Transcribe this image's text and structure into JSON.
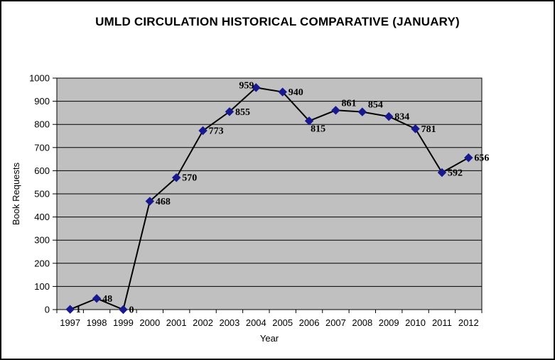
{
  "chart_data": {
    "type": "line",
    "title": "UMLD CIRCULATION HISTORICAL COMPARATIVE (JANUARY)",
    "xlabel": "Year",
    "ylabel": "Book Requests",
    "categories": [
      "1997",
      "1998",
      "1999",
      "2000",
      "2001",
      "2002",
      "2003",
      "2004",
      "2005",
      "2006",
      "2007",
      "2008",
      "2009",
      "2010",
      "2011",
      "2012"
    ],
    "values": [
      1,
      48,
      0,
      468,
      570,
      773,
      855,
      959,
      940,
      815,
      861,
      854,
      834,
      781,
      592,
      656
    ],
    "data_labels": [
      "1",
      "48",
      "0",
      "468",
      "570",
      "773",
      "855",
      "959",
      "940",
      "815",
      "861",
      "854",
      "834",
      "781",
      "592",
      "656"
    ],
    "label_placement": [
      "right",
      "right",
      "right",
      "right",
      "right",
      "right",
      "right",
      "left-above",
      "right",
      "below-right",
      "above-right",
      "above-right",
      "right",
      "right",
      "right",
      "right"
    ],
    "ylim": [
      0,
      1000
    ],
    "ytick_interval": 100,
    "yticks": [
      0,
      100,
      200,
      300,
      400,
      500,
      600,
      700,
      800,
      900,
      1000
    ],
    "grid": "horizontal",
    "legend": "none",
    "marker": "diamond",
    "colors": {
      "marker": "#181890",
      "line": "#000000",
      "plot_bg": "#C0C0C0",
      "grid": "#000000",
      "text": "#000000",
      "background": "#FFFFFF",
      "frame_border": "#000000"
    }
  }
}
